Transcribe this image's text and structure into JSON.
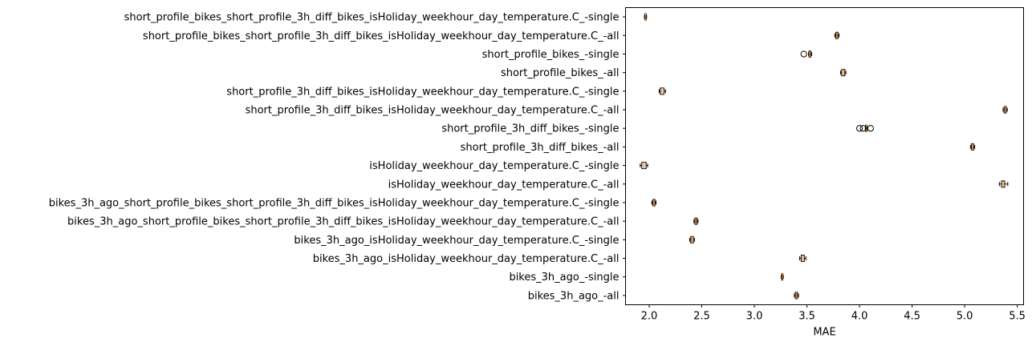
{
  "chart_data": {
    "type": "box",
    "orientation": "horizontal",
    "xlabel": "MAE",
    "xlim": [
      1.775,
      5.56
    ],
    "xticks": [
      2.0,
      2.5,
      3.0,
      3.5,
      4.0,
      4.5,
      5.0,
      5.5
    ],
    "xtick_labels": [
      "2.0",
      "2.5",
      "3.0",
      "3.5",
      "4.0",
      "4.5",
      "5.0",
      "5.5"
    ],
    "grid": false,
    "legend": "none",
    "colors": {
      "box_edge": "#000000",
      "median": "#ff7f0e",
      "background": "#ffffff"
    },
    "categories": [
      "short_profile_bikes_short_profile_3h_diff_bikes_isHoliday_weekhour_day_temperature.C_-single",
      "short_profile_bikes_short_profile_3h_diff_bikes_isHoliday_weekhour_day_temperature.C_-all",
      "short_profile_bikes_-single",
      "short_profile_bikes_-all",
      "short_profile_3h_diff_bikes_isHoliday_weekhour_day_temperature.C_-single",
      "short_profile_3h_diff_bikes_isHoliday_weekhour_day_temperature.C_-all",
      "short_profile_3h_diff_bikes_-single",
      "short_profile_3h_diff_bikes_-all",
      "isHoliday_weekhour_day_temperature.C_-single",
      "isHoliday_weekhour_day_temperature.C_-all",
      "bikes_3h_ago_short_profile_bikes_short_profile_3h_diff_bikes_isHoliday_weekhour_day_temperature.C_-single",
      "bikes_3h_ago_short_profile_bikes_short_profile_3h_diff_bikes_isHoliday_weekhour_day_temperature.C_-all",
      "bikes_3h_ago_isHoliday_weekhour_day_temperature.C_-single",
      "bikes_3h_ago_isHoliday_weekhour_day_temperature.C_-all",
      "bikes_3h_ago_-single",
      "bikes_3h_ago_-all"
    ],
    "boxes": [
      {
        "whislo": 1.955,
        "q1": 1.96,
        "med": 1.965,
        "q3": 1.97,
        "whishi": 1.975,
        "fliers": []
      },
      {
        "whislo": 3.765,
        "q1": 3.775,
        "med": 3.785,
        "q3": 3.795,
        "whishi": 3.805,
        "fliers": []
      },
      {
        "whislo": 3.515,
        "q1": 3.52,
        "med": 3.525,
        "q3": 3.535,
        "whishi": 3.545,
        "fliers": [
          3.47
        ]
      },
      {
        "whislo": 3.82,
        "q1": 3.83,
        "med": 3.845,
        "q3": 3.86,
        "whishi": 3.87,
        "fliers": []
      },
      {
        "whislo": 2.095,
        "q1": 2.105,
        "med": 2.12,
        "q3": 2.14,
        "whishi": 2.155,
        "fliers": []
      },
      {
        "whislo": 5.365,
        "q1": 5.375,
        "med": 5.385,
        "q3": 5.395,
        "whishi": 5.405,
        "fliers": []
      },
      {
        "whislo": 4.055,
        "q1": 4.06,
        "med": 4.065,
        "q3": 4.07,
        "whishi": 4.075,
        "fliers": [
          4.0,
          4.035,
          4.105
        ]
      },
      {
        "whislo": 5.055,
        "q1": 5.065,
        "med": 5.075,
        "q3": 5.085,
        "whishi": 5.095,
        "fliers": []
      },
      {
        "whislo": 1.915,
        "q1": 1.93,
        "med": 1.95,
        "q3": 1.97,
        "whishi": 1.985,
        "fliers": []
      },
      {
        "whislo": 5.33,
        "q1": 5.35,
        "med": 5.365,
        "q3": 5.38,
        "whishi": 5.41,
        "fliers": []
      },
      {
        "whislo": 2.025,
        "q1": 2.035,
        "med": 2.045,
        "q3": 2.055,
        "whishi": 2.065,
        "fliers": []
      },
      {
        "whislo": 2.425,
        "q1": 2.435,
        "med": 2.445,
        "q3": 2.455,
        "whishi": 2.465,
        "fliers": []
      },
      {
        "whislo": 2.385,
        "q1": 2.395,
        "med": 2.405,
        "q3": 2.42,
        "whishi": 2.43,
        "fliers": []
      },
      {
        "whislo": 3.43,
        "q1": 3.445,
        "med": 3.46,
        "q3": 3.475,
        "whishi": 3.49,
        "fliers": []
      },
      {
        "whislo": 3.255,
        "q1": 3.26,
        "med": 3.265,
        "q3": 3.27,
        "whishi": 3.275,
        "fliers": []
      },
      {
        "whislo": 3.38,
        "q1": 3.39,
        "med": 3.4,
        "q3": 3.41,
        "whishi": 3.42,
        "fliers": []
      }
    ]
  }
}
